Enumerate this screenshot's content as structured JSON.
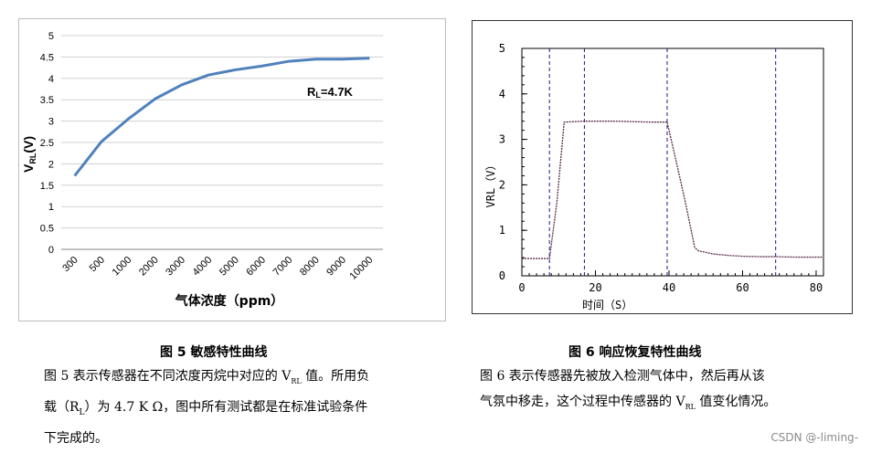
{
  "chart_data": [
    {
      "type": "line",
      "ylabel_main": "V",
      "ylabel_sub": "RL",
      "ylabel_tail": "(V)",
      "xlabel": "气体浓度（ppm）",
      "annotation_main": "R",
      "annotation_sub": "L",
      "annotation_tail": "=4.7K",
      "categories": [
        "300",
        "500",
        "1000",
        "2000",
        "3000",
        "4000",
        "5000",
        "6000",
        "7000",
        "8000",
        "9000",
        "10000"
      ],
      "y_ticks": [
        "0",
        "0.5",
        "1",
        "1.5",
        "2",
        "2.5",
        "3",
        "3.5",
        "4",
        "4.5",
        "5"
      ],
      "ylim": [
        0,
        5
      ],
      "grid": true,
      "color": "#4f81bd",
      "series": [
        {
          "values": [
            1.72,
            2.52,
            3.05,
            3.52,
            3.85,
            4.08,
            4.2,
            4.29,
            4.4,
            4.45,
            4.45,
            4.47
          ]
        }
      ]
    },
    {
      "type": "line",
      "ylabel": "VRL（V）",
      "xlabel": "时间（S）",
      "x_ticks": [
        "0",
        "20",
        "40",
        "60",
        "80"
      ],
      "y_ticks": [
        "0",
        "1",
        "2",
        "3",
        "4",
        "5"
      ],
      "xlim": [
        0,
        82
      ],
      "ylim": [
        0,
        5
      ],
      "color": "#5a2a4a",
      "markers": [
        7.5,
        17,
        39.5,
        69
      ],
      "series": [
        {
          "x": [
            0,
            7.5,
            9.5,
            11.5,
            17,
            25,
            35,
            39.5,
            42,
            44.5,
            47,
            48,
            52,
            56,
            60,
            65,
            69,
            75,
            82
          ],
          "y": [
            0.38,
            0.38,
            1.6,
            3.38,
            3.4,
            3.4,
            3.38,
            3.38,
            2.5,
            1.6,
            0.62,
            0.55,
            0.48,
            0.45,
            0.43,
            0.42,
            0.42,
            0.41,
            0.41
          ]
        }
      ]
    }
  ],
  "caption_left": {
    "title": "图 5   敏感特性曲线",
    "lines": [
      "图 5 表示传感器在不同浓度丙烷中对应的 V",
      "载（R",
      "下完成的。"
    ],
    "line1_sub": "RL",
    "line1_tail": " 值。所用负",
    "line2_sub": "L",
    "line2_tail": "）为 4.7 K Ω，图中所有测试都是在标准试验条件"
  },
  "caption_right": {
    "title": "图 6  响应恢复特性曲线",
    "line1": "图 6 表示传感器先被放入检测气体中，然后再从该",
    "line2_head": "气氛中移走，这个过程中传感器的 V",
    "line2_sub": "RL",
    "line2_tail": " 值变化情况。"
  },
  "watermark": "CSDN @-liming-"
}
